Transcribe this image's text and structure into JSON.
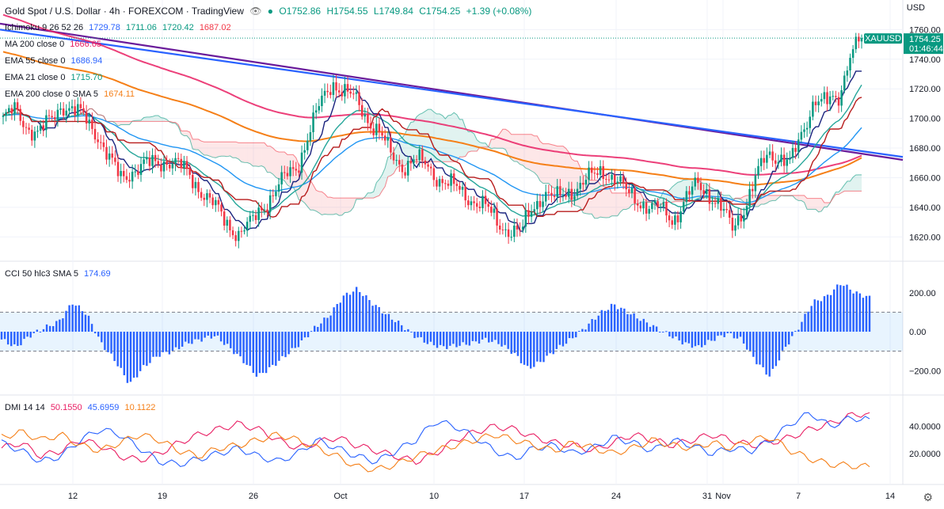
{
  "header": {
    "symbol": "Gold Spot / U.S. Dollar · 4h · FOREXCOM · TradingView",
    "ohlc": {
      "open": "O1752.86",
      "high": "H1754.55",
      "low": "L1749.84",
      "close": "C1754.25",
      "change": "+1.39 (+0.08%)"
    },
    "currency": "USD"
  },
  "indicators": {
    "ichimoku": {
      "name": "Ichimoku 9 26 52 26",
      "v1": "1729.78",
      "v2": "1711.06",
      "v3": "1720.42",
      "v4": "1687.02"
    },
    "ma200": {
      "name": "MA 200 close 0",
      "value": "1666.65"
    },
    "ema55": {
      "name": "EMA 55 close 0",
      "value": "1686.94"
    },
    "ema21": {
      "name": "EMA 21 close 0",
      "value": "1715.70"
    },
    "ema200": {
      "name": "EMA 200 close 0 SMA 5",
      "value": "1674.11"
    },
    "cci": {
      "name": "CCI 50 hlc3 SMA 5",
      "value": "174.69"
    },
    "dmi": {
      "name": "DMI 14 14",
      "v1": "50.1550",
      "v2": "45.6959",
      "v3": "10.1122"
    }
  },
  "price_tag": {
    "symbol": "XAUUSD",
    "price": "1754.25",
    "countdown": "01:46:44"
  },
  "colors": {
    "up": "#089981",
    "down": "#f23645",
    "cci": "#2962ff",
    "ema55": "#2196f3",
    "ema200": "#f57f17",
    "ma200": "#e91e63"
  },
  "chart_data": [
    {
      "type": "candlestick",
      "title": "Gold Spot / U.S. Dollar · 4h · FOREXCOM · TradingView",
      "ylim": [
        1610,
        1765
      ],
      "y_ticks": [
        1620,
        1640,
        1660,
        1680,
        1700,
        1720,
        1740,
        1760
      ],
      "x_ticks": [
        "12",
        "19",
        "26",
        "Oct",
        "10",
        "17",
        "24",
        "31",
        "Nov",
        "7",
        "14"
      ],
      "close_path": [
        1700,
        1705,
        1695,
        1690,
        1698,
        1710,
        1705,
        1700,
        1690,
        1672,
        1660,
        1665,
        1668,
        1670,
        1672,
        1668,
        1660,
        1650,
        1640,
        1630,
        1622,
        1628,
        1640,
        1650,
        1660,
        1668,
        1690,
        1710,
        1725,
        1718,
        1712,
        1700,
        1690,
        1675,
        1668,
        1672,
        1668,
        1660,
        1655,
        1650,
        1645,
        1640,
        1630,
        1625,
        1622,
        1640,
        1650,
        1645,
        1650,
        1655,
        1660,
        1665,
        1660,
        1650,
        1645,
        1640,
        1638,
        1632,
        1645,
        1655,
        1650,
        1640,
        1625,
        1640,
        1660,
        1675,
        1675,
        1670,
        1690,
        1715,
        1710,
        1712,
        1745,
        1754.25
      ],
      "series": [
        {
          "name": "MA 200 close 0",
          "value": 1666.65
        },
        {
          "name": "EMA 55 close 0",
          "value": 1686.94
        },
        {
          "name": "EMA 21 close 0",
          "value": 1715.7
        },
        {
          "name": "EMA 200 close 0 SMA 5",
          "value": 1674.11
        }
      ]
    },
    {
      "type": "bar",
      "title": "CCI 50 hlc3 SMA 5",
      "ylim": [
        -280,
        260
      ],
      "y_ticks": [
        200,
        0,
        -200
      ],
      "y_tick_labels": [
        "200.00",
        "0.00",
        "−200.00"
      ],
      "bands": [
        100,
        -100
      ],
      "last_value": 174.69,
      "value_path": [
        -40,
        -80,
        -20,
        20,
        50,
        150,
        90,
        -60,
        -150,
        -270,
        -180,
        -120,
        -100,
        -60,
        -40,
        -20,
        -80,
        -150,
        -230,
        -180,
        -120,
        -60,
        20,
        80,
        180,
        220,
        150,
        90,
        40,
        -20,
        -60,
        -80,
        -70,
        -60,
        -40,
        -60,
        -110,
        -190,
        -150,
        -90,
        -40,
        20,
        90,
        140,
        100,
        60,
        20,
        -20,
        -60,
        -80,
        -40,
        -10,
        -40,
        -150,
        -230,
        -90,
        20,
        150,
        180,
        250,
        200,
        174.69
      ]
    },
    {
      "type": "line",
      "title": "DMI 14 14",
      "ylim": [
        0,
        58
      ],
      "y_ticks": [
        40,
        20
      ],
      "y_tick_labels": [
        "40.0000",
        "20.0000"
      ],
      "series": [
        {
          "name": "DMI 14 14",
          "last": 50.155,
          "values": [
            24,
            28,
            18,
            22,
            30,
            26,
            18,
            15,
            20,
            28,
            34,
            38,
            42,
            38,
            30,
            24,
            28,
            32,
            26,
            22,
            18,
            14,
            20,
            30,
            36,
            40,
            38,
            32,
            28,
            26,
            22,
            28,
            34,
            30,
            26,
            30,
            34,
            30,
            26,
            28,
            32,
            38,
            42,
            48,
            50.155
          ]
        },
        {
          "name": "DMI 14 14",
          "last": 45.6959,
          "values": [
            28,
            22,
            14,
            18,
            30,
            38,
            34,
            24,
            14,
            12,
            16,
            20,
            24,
            18,
            14,
            20,
            30,
            24,
            18,
            14,
            22,
            30,
            44,
            40,
            32,
            22,
            16,
            24,
            26,
            20,
            24,
            32,
            28,
            22,
            30,
            26,
            20,
            24,
            22,
            30,
            42,
            50,
            40,
            46,
            45.6959
          ]
        },
        {
          "name": "DMI 14 14",
          "last": 10.1122,
          "values": [
            32,
            36,
            30,
            34,
            26,
            22,
            28,
            34,
            30,
            22,
            18,
            24,
            26,
            30,
            34,
            30,
            24,
            18,
            10,
            8,
            12,
            18,
            22,
            26,
            30,
            34,
            30,
            26,
            22,
            28,
            24,
            20,
            24,
            30,
            26,
            24,
            28,
            24,
            30,
            32,
            22,
            16,
            12,
            11,
            10.1122
          ]
        }
      ]
    }
  ]
}
